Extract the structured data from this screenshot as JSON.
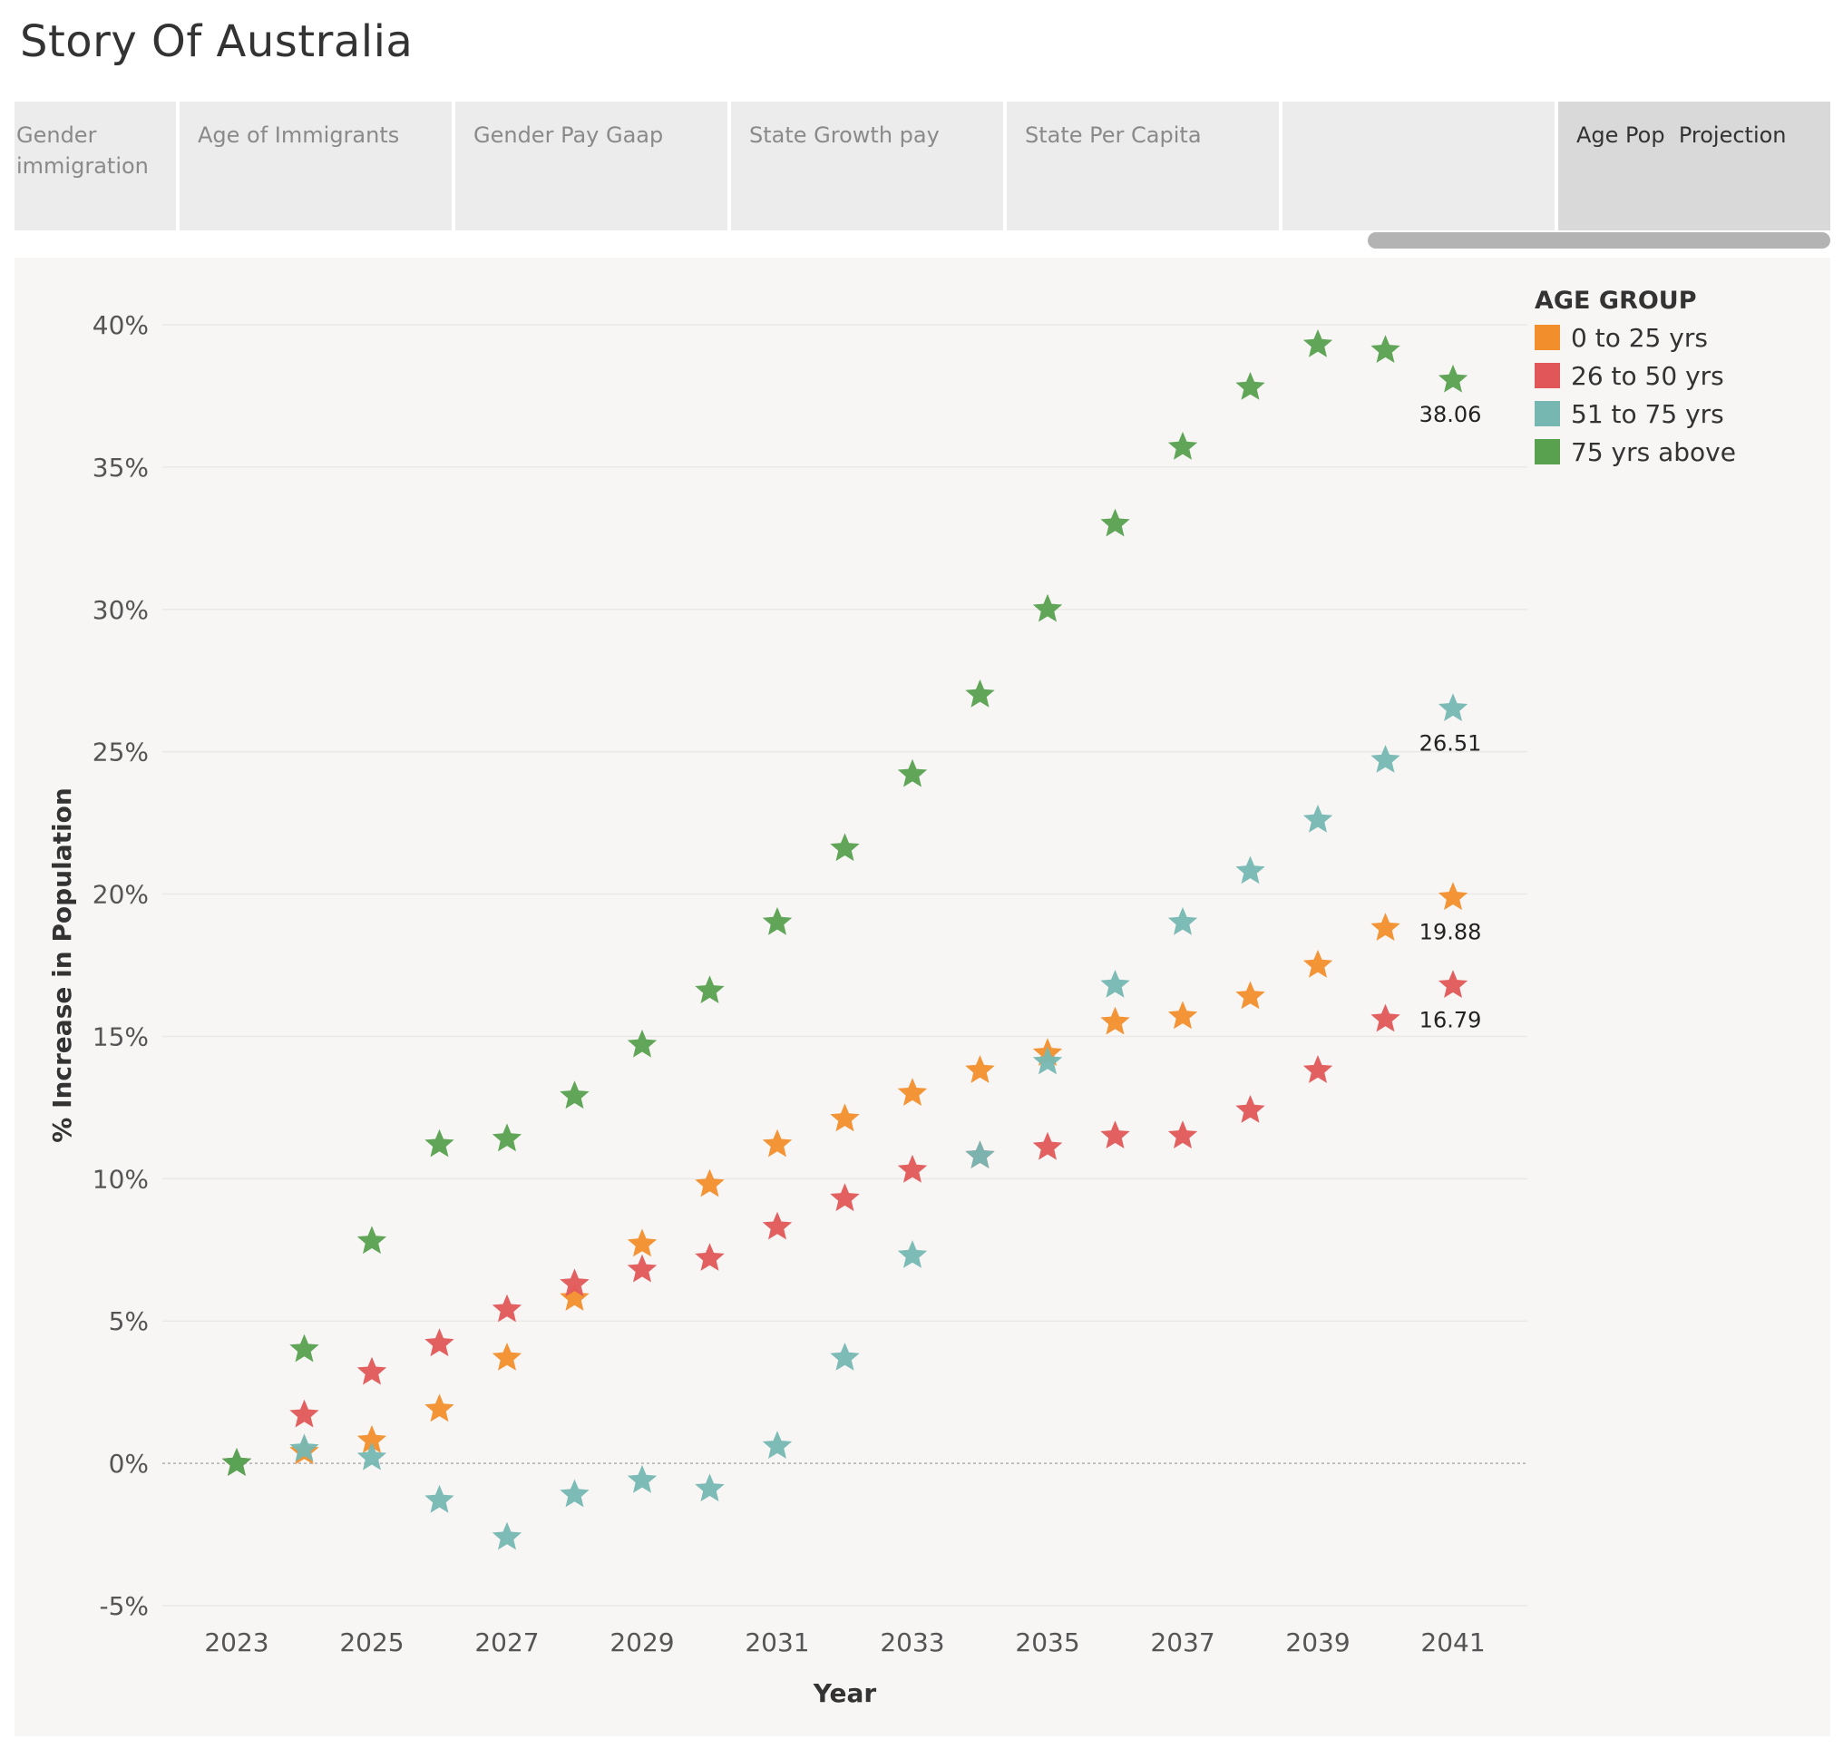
{
  "app": {
    "title": "Story Of Australia"
  },
  "tabs": [
    {
      "label": "Gender\nimmigration",
      "active": false
    },
    {
      "label": "Age of Immigrants",
      "active": false
    },
    {
      "label": "Gender Pay Gaap",
      "active": false
    },
    {
      "label": "State Growth pay",
      "active": false
    },
    {
      "label": "State Per Capita",
      "active": false
    },
    {
      "label": "",
      "active": false
    },
    {
      "label": "Age Pop  Projection",
      "active": true
    }
  ],
  "legend": {
    "title": "AGE GROUP"
  },
  "chart_data": {
    "type": "scatter",
    "marker": "star",
    "xlabel": "Year",
    "ylabel": "% Increase in Population",
    "x_ticks": [
      "2023",
      "2025",
      "2027",
      "2029",
      "2031",
      "2033",
      "2035",
      "2037",
      "2039",
      "2041"
    ],
    "y_ticks": [
      "-5%",
      "0%",
      "5%",
      "10%",
      "15%",
      "20%",
      "25%",
      "30%",
      "35%",
      "40%"
    ],
    "xlim": [
      2021.9,
      2042.1
    ],
    "ylim": [
      -5,
      40
    ],
    "grid": "horizontal",
    "legend_position": "top-right",
    "x": [
      2023,
      2024,
      2025,
      2026,
      2027,
      2028,
      2029,
      2030,
      2031,
      2032,
      2033,
      2034,
      2035,
      2036,
      2037,
      2038,
      2039,
      2040,
      2041
    ],
    "series": [
      {
        "name": "0 to 25 yrs",
        "color": "#f28e2b",
        "values": [
          0,
          0.4,
          0.8,
          1.9,
          3.7,
          5.8,
          7.7,
          9.8,
          11.2,
          12.1,
          13.0,
          13.8,
          14.4,
          15.5,
          15.7,
          16.4,
          17.5,
          18.8,
          19.88
        ],
        "end_label": "19.88"
      },
      {
        "name": "26 to 50 yrs",
        "color": "#e15759",
        "values": [
          0,
          1.7,
          3.2,
          4.2,
          5.4,
          6.3,
          6.8,
          7.2,
          8.3,
          9.3,
          10.3,
          10.8,
          11.1,
          11.5,
          11.5,
          12.4,
          13.8,
          15.6,
          16.79
        ],
        "end_label": "16.79"
      },
      {
        "name": "51 to 75 yrs",
        "color": "#76b7b2",
        "values": [
          0,
          0.5,
          0.2,
          -1.3,
          -2.6,
          -1.1,
          -0.6,
          -0.9,
          0.6,
          3.7,
          7.3,
          10.8,
          14.1,
          16.8,
          19.0,
          20.8,
          22.6,
          24.7,
          26.51
        ],
        "end_label": "26.51"
      },
      {
        "name": "75 yrs above",
        "color": "#59a14f",
        "values": [
          0,
          4.0,
          7.8,
          11.2,
          11.4,
          12.9,
          14.7,
          16.6,
          19.0,
          21.6,
          24.2,
          27.0,
          30.0,
          33.0,
          35.7,
          37.8,
          39.3,
          39.1,
          38.06
        ],
        "end_label": "38.06"
      }
    ]
  }
}
